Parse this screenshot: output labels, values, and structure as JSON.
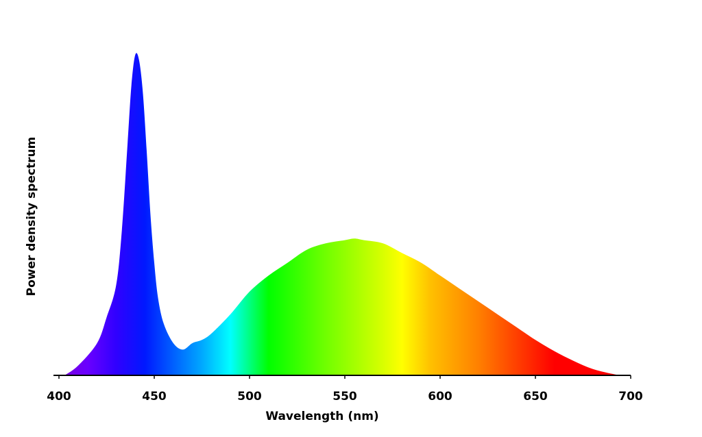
{
  "chart_data": {
    "type": "area",
    "title": "",
    "xlabel": "Wavelength (nm)",
    "ylabel": "Power density spectrum",
    "xlim": [
      400,
      700
    ],
    "ylim": [
      0,
      1
    ],
    "x_ticks": [
      400,
      450,
      500,
      550,
      600,
      650,
      700
    ],
    "y_ticks": [],
    "grid": false,
    "legend": "none",
    "fill": "visible-spectrum-gradient",
    "series": [
      {
        "x": [
          403,
          410,
          420,
          425,
          430,
          433,
          436,
          438,
          440,
          442,
          444,
          446,
          448,
          450,
          452,
          455,
          460,
          465,
          470,
          475,
          480,
          490,
          500,
          510,
          520,
          530,
          540,
          550,
          555,
          560,
          570,
          580,
          590,
          600,
          610,
          620,
          630,
          640,
          650,
          660,
          670,
          680,
          690,
          695
        ],
        "values": [
          0.0,
          0.03,
          0.1,
          0.18,
          0.28,
          0.45,
          0.72,
          0.9,
          0.995,
          0.98,
          0.88,
          0.7,
          0.5,
          0.35,
          0.24,
          0.16,
          0.1,
          0.08,
          0.1,
          0.11,
          0.13,
          0.19,
          0.26,
          0.31,
          0.35,
          0.39,
          0.41,
          0.42,
          0.425,
          0.42,
          0.41,
          0.38,
          0.35,
          0.31,
          0.27,
          0.23,
          0.19,
          0.15,
          0.11,
          0.075,
          0.045,
          0.02,
          0.005,
          0.0
        ]
      }
    ],
    "spectrum_colors": [
      {
        "wavelength": 400,
        "color": "#7a00d8"
      },
      {
        "wavelength": 415,
        "color": "#6a00ff"
      },
      {
        "wavelength": 430,
        "color": "#3000ff"
      },
      {
        "wavelength": 445,
        "color": "#0018ff"
      },
      {
        "wavelength": 460,
        "color": "#0060ff"
      },
      {
        "wavelength": 475,
        "color": "#00a8ff"
      },
      {
        "wavelength": 490,
        "color": "#00ffff"
      },
      {
        "wavelength": 500,
        "color": "#00ff80"
      },
      {
        "wavelength": 510,
        "color": "#00ff00"
      },
      {
        "wavelength": 540,
        "color": "#70ff00"
      },
      {
        "wavelength": 570,
        "color": "#d8ff00"
      },
      {
        "wavelength": 580,
        "color": "#ffff00"
      },
      {
        "wavelength": 595,
        "color": "#ffc000"
      },
      {
        "wavelength": 620,
        "color": "#ff8000"
      },
      {
        "wavelength": 645,
        "color": "#ff3000"
      },
      {
        "wavelength": 660,
        "color": "#ff0000"
      },
      {
        "wavelength": 700,
        "color": "#ff0000"
      }
    ],
    "axis_color": "#000000"
  }
}
